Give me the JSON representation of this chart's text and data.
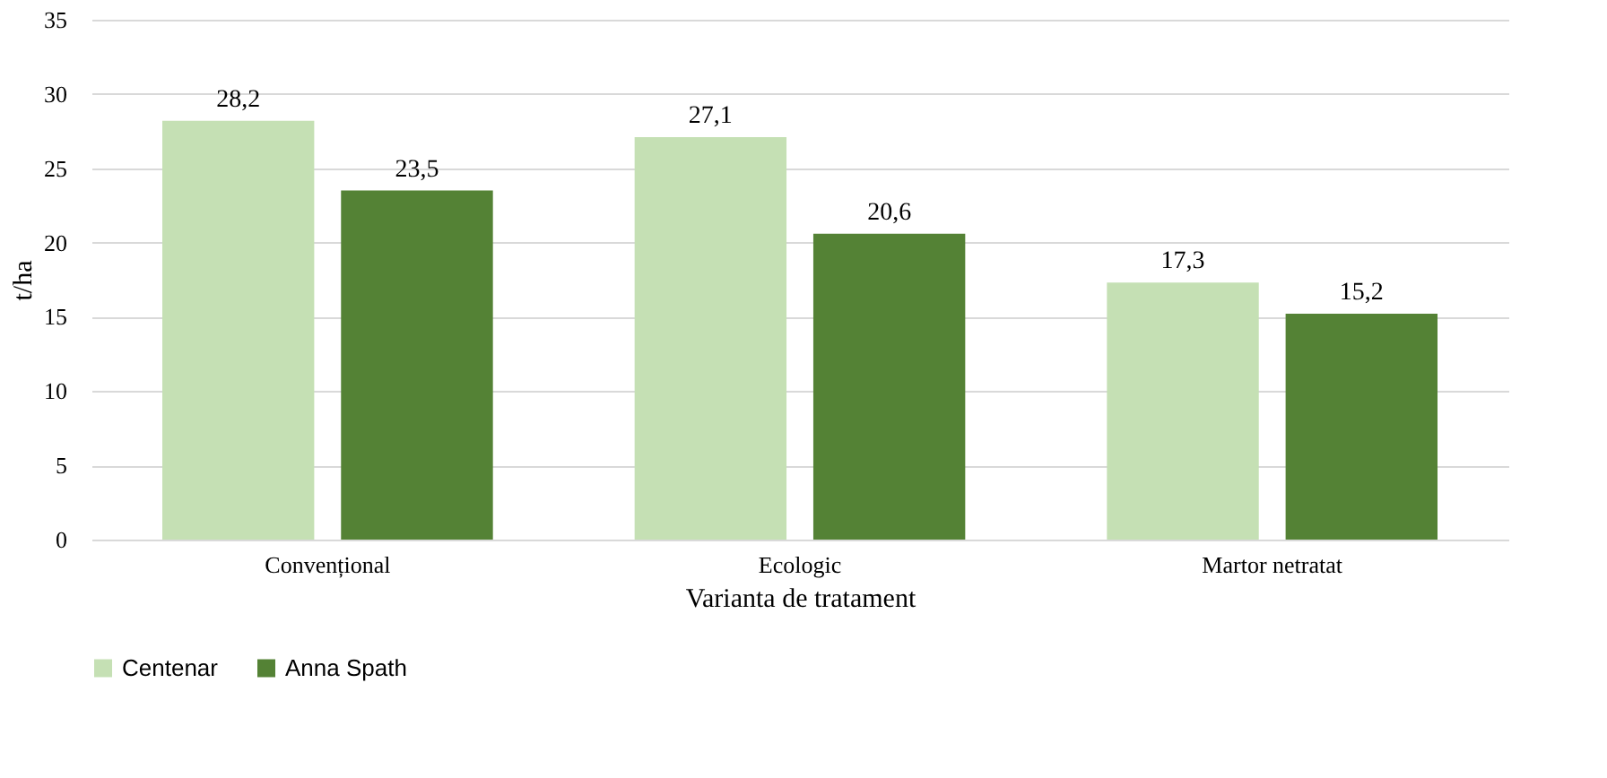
{
  "chart_data": {
    "type": "bar",
    "xlabel": "Varianta de tratament",
    "ylabel": "t/ha",
    "categories": [
      "Convențional",
      "Ecologic",
      "Martor netratat"
    ],
    "series": [
      {
        "name": "Centenar",
        "color": "#c5e0b4",
        "values": [
          28.2,
          27.1,
          17.3
        ],
        "value_labels": [
          "28,2",
          "27,1",
          "17,3"
        ]
      },
      {
        "name": "Anna Spath",
        "color": "#548235",
        "values": [
          23.5,
          20.6,
          15.2
        ],
        "value_labels": [
          "23,5",
          "20,6",
          "15,2"
        ]
      }
    ],
    "ylim": [
      0,
      35
    ],
    "yticks": [
      0,
      5,
      10,
      15,
      20,
      25,
      30,
      35
    ],
    "grid": "y",
    "legend": "bottom"
  }
}
